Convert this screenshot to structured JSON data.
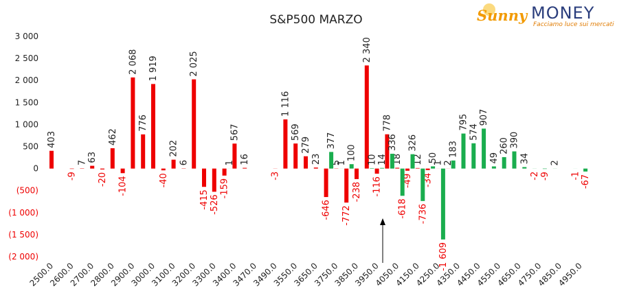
{
  "chart_data": {
    "type": "bar",
    "title": "S&P500 MARZO",
    "categories": [
      "2500.0",
      null,
      "2600.0",
      null,
      "2700.0",
      null,
      "2800.0",
      null,
      "2900.0",
      null,
      "3000.0",
      null,
      "3100.0",
      null,
      "3200.0",
      null,
      "3300.0",
      null,
      "3400.0",
      null,
      "3470.0",
      null,
      "3490.0",
      null,
      "3550.0",
      null,
      "3650.0",
      null,
      "3750.0",
      null,
      "3850.0",
      null,
      "3950.0",
      null,
      "4050.0",
      null,
      "4150.0",
      null,
      "4250.0",
      null,
      "4350.0",
      null,
      "4450.0",
      null,
      "4550.0",
      null,
      "4650.0",
      null,
      "4750.0",
      null,
      "4850.0",
      null,
      "4950.0"
    ],
    "series": [
      {
        "color": "#ee0000",
        "values": [
          403,
          null,
          -9,
          7,
          63,
          -20,
          462,
          -104,
          2068,
          776,
          1919,
          -40,
          202,
          6,
          2025,
          -415,
          -526,
          -159,
          567,
          16,
          null,
          null,
          -3,
          1116,
          569,
          279,
          23,
          -646,
          5,
          -772,
          -238,
          2340,
          -116,
          778,
          18,
          -49,
          12,
          -34,
          1,
          2,
          null,
          null,
          null,
          null,
          null,
          null,
          null,
          null,
          null,
          null,
          null,
          null,
          null
        ],
        "value_labels": [
          null,
          null,
          null,
          null,
          null,
          null,
          null,
          null,
          "2 068",
          null,
          "1 919",
          null,
          null,
          null,
          "2 025",
          null,
          null,
          null,
          null,
          null,
          null,
          null,
          null,
          "1 116",
          null,
          null,
          null,
          null,
          null,
          null,
          null,
          "2 340",
          null,
          null,
          null,
          null,
          null,
          null,
          null,
          null,
          null,
          null,
          null,
          null,
          null,
          null,
          null,
          null,
          null,
          null,
          null,
          null,
          null
        ]
      },
      {
        "color": "#1aad4e",
        "values": [
          null,
          null,
          null,
          null,
          null,
          null,
          null,
          null,
          null,
          null,
          null,
          null,
          null,
          null,
          null,
          null,
          null,
          1,
          null,
          null,
          null,
          null,
          null,
          null,
          null,
          null,
          null,
          377,
          1,
          100,
          null,
          10,
          14,
          336,
          -618,
          326,
          -736,
          50,
          -1609,
          183,
          795,
          574,
          907,
          49,
          260,
          390,
          34,
          -2,
          -9,
          2,
          null,
          -1,
          -67
        ],
        "value_labels": [
          null,
          null,
          null,
          null,
          null,
          null,
          null,
          null,
          null,
          null,
          null,
          null,
          null,
          null,
          null,
          null,
          null,
          null,
          null,
          null,
          null,
          null,
          null,
          null,
          null,
          null,
          null,
          null,
          null,
          null,
          null,
          null,
          null,
          null,
          null,
          null,
          null,
          null,
          "-1 609",
          null,
          null,
          null,
          null,
          null,
          null,
          null,
          null,
          null,
          null,
          null,
          null,
          null,
          null
        ]
      }
    ],
    "ylim": [
      -2000,
      3000
    ],
    "yticks": [
      {
        "value": 3000,
        "label": "3 000"
      },
      {
        "value": 2500,
        "label": "2 500"
      },
      {
        "value": 2000,
        "label": "2 000"
      },
      {
        "value": 1500,
        "label": "1 500"
      },
      {
        "value": 1000,
        "label": "1 000"
      },
      500,
      0,
      {
        "value": -500,
        "label": "(500)"
      },
      {
        "value": -1000,
        "label": "(1 000)"
      },
      {
        "value": -1500,
        "label": "(1 500)"
      },
      {
        "value": -2000,
        "label": "(2 000)"
      }
    ],
    "negative_color": "#ee0000",
    "grid": false
  },
  "logo": {
    "brand": "Sunny",
    "name": "MONEY",
    "tagline": "Facciamo luce sui mercati"
  }
}
